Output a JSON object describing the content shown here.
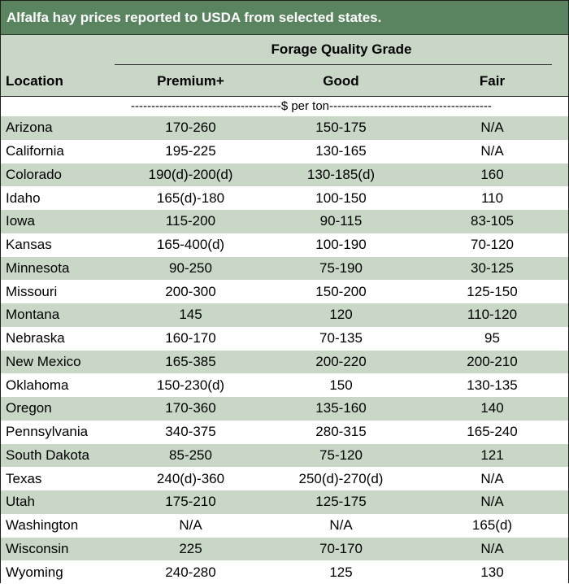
{
  "title": "Alfalfa hay prices reported to USDA from selected states.",
  "group_header": "Forage Quality Grade",
  "columns": {
    "location": "Location",
    "premium": "Premium+",
    "good": "Good",
    "fair": "Fair"
  },
  "unit_row": "-------------------------------------$ per ton----------------------------------------",
  "chart_data": {
    "type": "table",
    "title": "Alfalfa hay prices reported to USDA from selected states.",
    "headers": [
      "Location",
      "Premium+",
      "Good",
      "Fair"
    ],
    "rows": [
      {
        "location": "Arizona",
        "premium": "170-260",
        "good": "150-175",
        "fair": "N/A"
      },
      {
        "location": "California",
        "premium": "195-225",
        "good": "130-165",
        "fair": "N/A"
      },
      {
        "location": "Colorado",
        "premium": "190(d)-200(d)",
        "good": "130-185(d)",
        "fair": "160"
      },
      {
        "location": "Idaho",
        "premium": "165(d)-180",
        "good": "100-150",
        "fair": "110"
      },
      {
        "location": "Iowa",
        "premium": "115-200",
        "good": "90-115",
        "fair": "83-105"
      },
      {
        "location": "Kansas",
        "premium": "165-400(d)",
        "good": "100-190",
        "fair": "70-120"
      },
      {
        "location": "Minnesota",
        "premium": "90-250",
        "good": "75-190",
        "fair": "30-125"
      },
      {
        "location": "Missouri",
        "premium": "200-300",
        "good": "150-200",
        "fair": "125-150"
      },
      {
        "location": "Montana",
        "premium": "145",
        "good": "120",
        "fair": "110-120"
      },
      {
        "location": "Nebraska",
        "premium": "160-170",
        "good": "70-135",
        "fair": "95"
      },
      {
        "location": "New Mexico",
        "premium": "165-385",
        "good": "200-220",
        "fair": "200-210"
      },
      {
        "location": "Oklahoma",
        "premium": "150-230(d)",
        "good": "150",
        "fair": "130-135"
      },
      {
        "location": "Oregon",
        "premium": "170-360",
        "good": "135-160",
        "fair": "140"
      },
      {
        "location": "Pennsylvania",
        "premium": "340-375",
        "good": "280-315",
        "fair": "165-240"
      },
      {
        "location": "South Dakota",
        "premium": "85-250",
        "good": "75-120",
        "fair": "121"
      },
      {
        "location": "Texas",
        "premium": "240(d)-360",
        "good": "250(d)-270(d)",
        "fair": "N/A"
      },
      {
        "location": "Utah",
        "premium": "175-210",
        "good": "125-175",
        "fair": "N/A"
      },
      {
        "location": "Washington",
        "premium": "N/A",
        "good": "N/A",
        "fair": "165(d)"
      },
      {
        "location": "Wisconsin",
        "premium": "225",
        "good": "70-170",
        "fair": "N/A"
      },
      {
        "location": "Wyoming",
        "premium": "240-280",
        "good": "125",
        "fair": "130"
      }
    ]
  },
  "colors": {
    "title_bg": "#5a8360",
    "band": "#c8d7c6",
    "text": "#000000"
  }
}
